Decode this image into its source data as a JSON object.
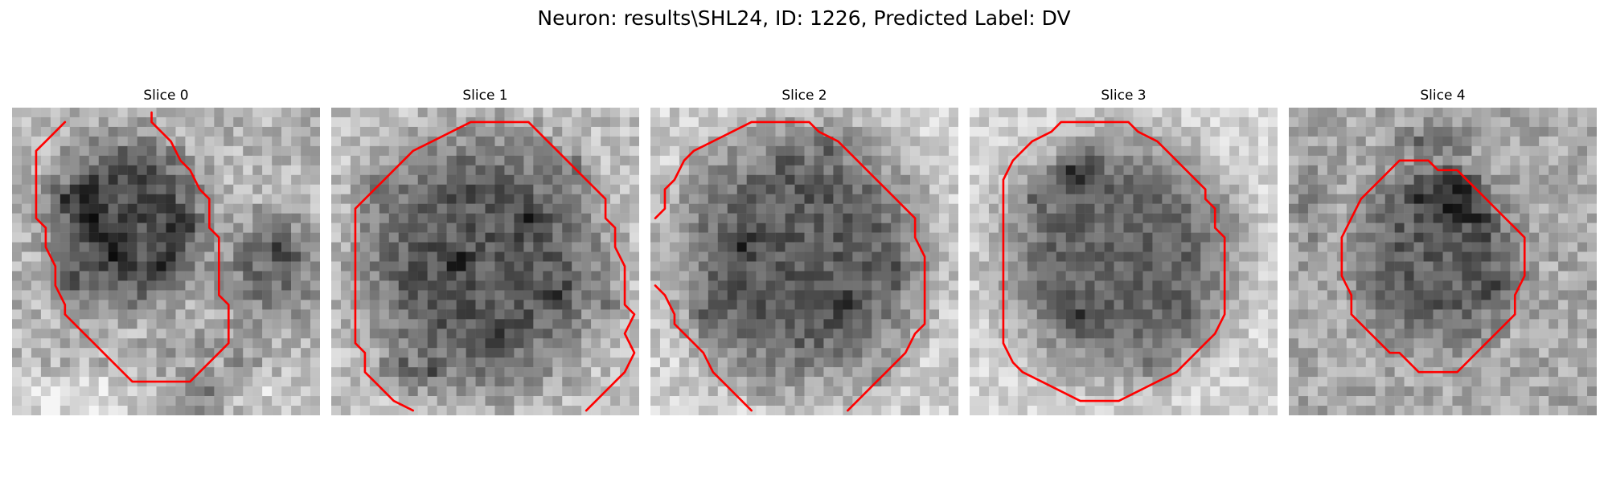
{
  "title": "Neuron: results\\SHL24, ID: 1226, Predicted Label: DV",
  "contour_color": "#ff0000",
  "slices": [
    {
      "label": "Slice 0"
    },
    {
      "label": "Slice 1"
    },
    {
      "label": "Slice 2"
    },
    {
      "label": "Slice 3"
    },
    {
      "label": "Slice 4"
    }
  ]
}
